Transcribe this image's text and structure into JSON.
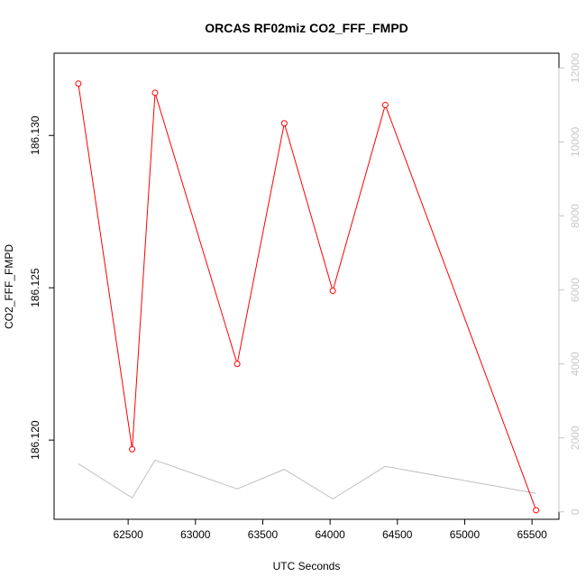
{
  "chart_data": {
    "type": "line",
    "title": "ORCAS RF02miz CO2_FFF_FMPD",
    "xlabel": "UTC Seconds",
    "ylabel": "CO2_FFF_FMPD",
    "xlim": [
      61950,
      65700
    ],
    "ylim": [
      186.1174,
      186.1327
    ],
    "y2lim": [
      -200,
      12400
    ],
    "x_ticks": [
      62500,
      63000,
      63500,
      64000,
      64500,
      65000,
      65500
    ],
    "y_ticks": [
      186.12,
      186.125,
      186.13
    ],
    "y_tick_labels": [
      "186.120",
      "186.125",
      "186.130"
    ],
    "y2_ticks": [
      0,
      2000,
      4000,
      6000,
      8000,
      10000,
      12000
    ],
    "series": [
      {
        "color": "#ff0000",
        "axis": "left",
        "markers": "open-circle",
        "x": [
          62130,
          62530,
          62700,
          63310,
          63660,
          64020,
          64410,
          65530
        ],
        "values": [
          186.1317,
          186.1197,
          186.1314,
          186.1225,
          186.1304,
          186.1249,
          186.131,
          186.1177
        ]
      },
      {
        "color": "#c0c0c0",
        "axis": "right",
        "markers": "none",
        "x": [
          62130,
          62530,
          62700,
          63310,
          63660,
          64020,
          64410,
          65530
        ],
        "values": [
          1300,
          380,
          1400,
          620,
          1150,
          350,
          1230,
          500
        ]
      }
    ]
  }
}
